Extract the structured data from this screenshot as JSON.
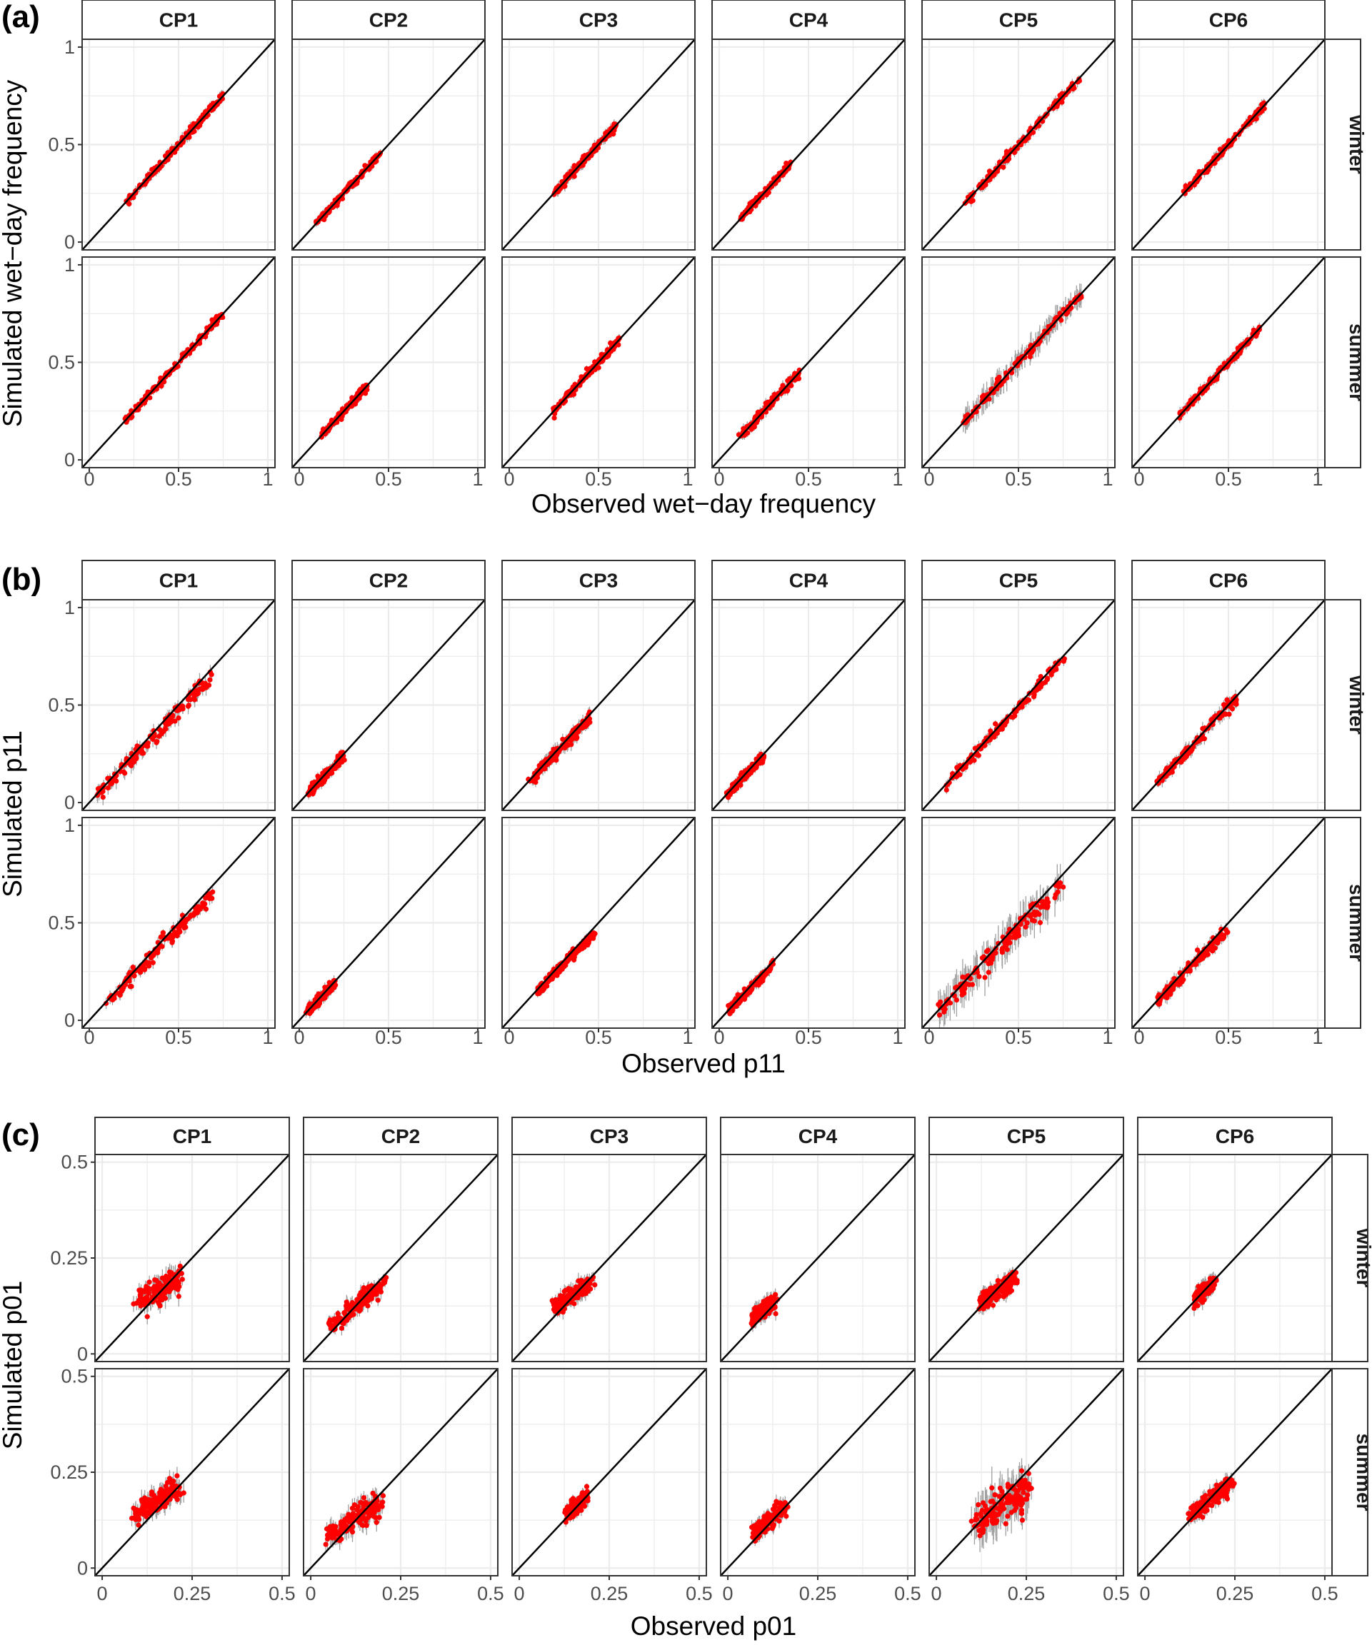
{
  "chart_data": [
    {
      "type": "scatter",
      "panel_label": "(a)",
      "xlabel": "Observed wet−day frequency",
      "ylabel": "Simulated wet−day frequency",
      "columns": [
        "CP1",
        "CP2",
        "CP3",
        "CP4",
        "CP5",
        "CP6"
      ],
      "rows": [
        "winter",
        "summer"
      ],
      "xlim": [
        -0.04,
        1.04
      ],
      "ylim": [
        -0.04,
        1.04
      ],
      "xticks": [
        0,
        0.5,
        1
      ],
      "xtick_labels": [
        "0",
        "0.5",
        "1"
      ],
      "yticks": [
        0,
        0.5,
        1
      ],
      "ytick_labels": [
        "0",
        "0.5",
        "1"
      ],
      "reference_line": "y = x",
      "grid": true,
      "clusters": {
        "winter": [
          {
            "x": [
              0.2,
              0.75
            ],
            "bias": 0.0,
            "spread": 0.012,
            "err": 0.02
          },
          {
            "x": [
              0.1,
              0.45
            ],
            "bias": 0.0,
            "spread": 0.01,
            "err": 0.015
          },
          {
            "x": [
              0.25,
              0.6
            ],
            "bias": 0.0,
            "spread": 0.012,
            "err": 0.02
          },
          {
            "x": [
              0.12,
              0.4
            ],
            "bias": 0.0,
            "spread": 0.01,
            "err": 0.015
          },
          {
            "x": [
              0.2,
              0.85
            ],
            "bias": 0.0,
            "spread": 0.012,
            "err": 0.02
          },
          {
            "x": [
              0.25,
              0.7
            ],
            "bias": 0.0,
            "spread": 0.01,
            "err": 0.02
          }
        ],
        "summer": [
          {
            "x": [
              0.2,
              0.75
            ],
            "bias": 0.0,
            "spread": 0.01,
            "err": 0.015
          },
          {
            "x": [
              0.12,
              0.38
            ],
            "bias": 0.0,
            "spread": 0.01,
            "err": 0.015
          },
          {
            "x": [
              0.25,
              0.62
            ],
            "bias": 0.0,
            "spread": 0.01,
            "err": 0.015
          },
          {
            "x": [
              0.12,
              0.45
            ],
            "bias": 0.0,
            "spread": 0.012,
            "err": 0.02
          },
          {
            "x": [
              0.18,
              0.85
            ],
            "bias": 0.0,
            "spread": 0.012,
            "err": 0.05
          },
          {
            "x": [
              0.22,
              0.68
            ],
            "bias": 0.0,
            "spread": 0.01,
            "err": 0.02
          }
        ]
      }
    },
    {
      "type": "scatter",
      "panel_label": "(b)",
      "xlabel": "Observed p11",
      "ylabel": "Simulated p11",
      "columns": [
        "CP1",
        "CP2",
        "CP3",
        "CP4",
        "CP5",
        "CP6"
      ],
      "rows": [
        "winter",
        "summer"
      ],
      "xlim": [
        -0.04,
        1.04
      ],
      "ylim": [
        -0.04,
        1.04
      ],
      "xticks": [
        0,
        0.5,
        1
      ],
      "xtick_labels": [
        "0",
        "0.5",
        "1"
      ],
      "yticks": [
        0,
        0.5,
        1
      ],
      "ytick_labels": [
        "0",
        "0.5",
        "1"
      ],
      "reference_line": "y = x",
      "grid": true,
      "clusters": {
        "winter": [
          {
            "x": [
              0.05,
              0.7
            ],
            "bias": -0.04,
            "spread": 0.02,
            "err": 0.03
          },
          {
            "x": [
              0.05,
              0.25
            ],
            "bias": -0.01,
            "spread": 0.012,
            "err": 0.02
          },
          {
            "x": [
              0.1,
              0.45
            ],
            "bias": -0.02,
            "spread": 0.015,
            "err": 0.025
          },
          {
            "x": [
              0.05,
              0.25
            ],
            "bias": -0.01,
            "spread": 0.012,
            "err": 0.02
          },
          {
            "x": [
              0.1,
              0.77
            ],
            "bias": -0.02,
            "spread": 0.015,
            "err": 0.02
          },
          {
            "x": [
              0.1,
              0.55
            ],
            "bias": -0.01,
            "spread": 0.015,
            "err": 0.025
          }
        ],
        "summer": [
          {
            "x": [
              0.1,
              0.7
            ],
            "bias": -0.04,
            "spread": 0.018,
            "err": 0.025
          },
          {
            "x": [
              0.05,
              0.2
            ],
            "bias": -0.01,
            "spread": 0.012,
            "err": 0.02
          },
          {
            "x": [
              0.15,
              0.48
            ],
            "bias": -0.03,
            "spread": 0.012,
            "err": 0.015
          },
          {
            "x": [
              0.05,
              0.3
            ],
            "bias": -0.02,
            "spread": 0.012,
            "err": 0.02
          },
          {
            "x": [
              0.05,
              0.75
            ],
            "bias": -0.05,
            "spread": 0.03,
            "err": 0.07
          },
          {
            "x": [
              0.1,
              0.5
            ],
            "bias": -0.03,
            "spread": 0.015,
            "err": 0.025
          }
        ]
      }
    },
    {
      "type": "scatter",
      "panel_label": "(c)",
      "xlabel": "Observed p01",
      "ylabel": "Simulated p01",
      "columns": [
        "CP1",
        "CP2",
        "CP3",
        "CP4",
        "CP5",
        "CP6"
      ],
      "rows": [
        "winter",
        "summer"
      ],
      "xlim": [
        -0.02,
        0.52
      ],
      "ylim": [
        -0.02,
        0.52
      ],
      "xticks": [
        0,
        0.25,
        0.5
      ],
      "xtick_labels": [
        "0",
        "0.25",
        "0.5"
      ],
      "yticks": [
        0,
        0.25,
        0.5
      ],
      "ytick_labels": [
        "0",
        "0.25",
        "0.5"
      ],
      "reference_line": "y = x",
      "grid": true,
      "clusters": {
        "winter": [
          {
            "x": [
              0.1,
              0.22
            ],
            "slope": 0.5,
            "center": 0.16,
            "ycenter": 0.17,
            "spread": 0.018,
            "err": 0.02
          },
          {
            "x": [
              0.05,
              0.21
            ],
            "slope": 0.75,
            "center": 0.13,
            "ycenter": 0.13,
            "spread": 0.012,
            "err": 0.015
          },
          {
            "x": [
              0.1,
              0.2
            ],
            "slope": 0.6,
            "center": 0.15,
            "ycenter": 0.155,
            "spread": 0.012,
            "err": 0.015
          },
          {
            "x": [
              0.07,
              0.13
            ],
            "slope": 0.6,
            "center": 0.1,
            "ycenter": 0.115,
            "spread": 0.012,
            "err": 0.015
          },
          {
            "x": [
              0.12,
              0.22
            ],
            "slope": 0.6,
            "center": 0.17,
            "ycenter": 0.165,
            "spread": 0.012,
            "err": 0.015
          },
          {
            "x": [
              0.14,
              0.19
            ],
            "slope": 0.8,
            "center": 0.165,
            "ycenter": 0.165,
            "spread": 0.01,
            "err": 0.015
          }
        ],
        "summer": [
          {
            "x": [
              0.09,
              0.22
            ],
            "slope": 0.55,
            "center": 0.16,
            "ycenter": 0.18,
            "spread": 0.015,
            "err": 0.02
          },
          {
            "x": [
              0.05,
              0.2
            ],
            "slope": 0.6,
            "center": 0.12,
            "ycenter": 0.125,
            "spread": 0.015,
            "err": 0.02
          },
          {
            "x": [
              0.13,
              0.19
            ],
            "slope": 0.8,
            "center": 0.16,
            "ycenter": 0.165,
            "spread": 0.01,
            "err": 0.012
          },
          {
            "x": [
              0.07,
              0.16
            ],
            "slope": 0.7,
            "center": 0.11,
            "ycenter": 0.12,
            "spread": 0.012,
            "err": 0.015
          },
          {
            "x": [
              0.11,
              0.26
            ],
            "slope": 0.6,
            "center": 0.19,
            "ycenter": 0.17,
            "spread": 0.022,
            "err": 0.04
          },
          {
            "x": [
              0.13,
              0.24
            ],
            "slope": 0.75,
            "center": 0.19,
            "ycenter": 0.185,
            "spread": 0.012,
            "err": 0.015
          }
        ]
      }
    }
  ],
  "colors": {
    "points": "#ff0000",
    "error_bars": "#a0a0a0",
    "grid": "#ebebeb",
    "reference_line": "#000000",
    "panel_border": "#333333"
  }
}
